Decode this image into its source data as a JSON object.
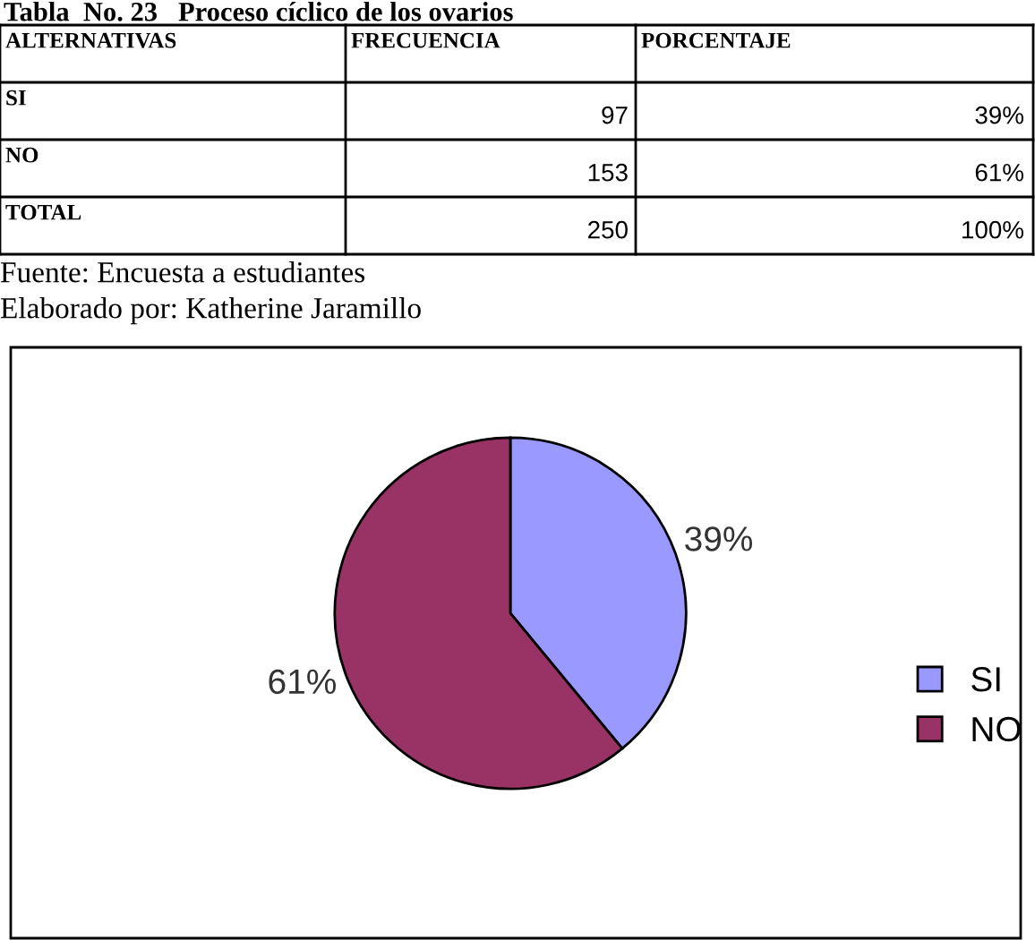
{
  "chart_data": {
    "type": "pie",
    "title": "Tabla  No. 23   Proceso cíclico de los ovarios",
    "categories": [
      "SI",
      "NO"
    ],
    "values": [
      39,
      61
    ],
    "value_labels": [
      "39%",
      "61%"
    ],
    "colors": [
      "#9999ff",
      "#993366"
    ],
    "legend": "right",
    "annotations": [
      "ALTERNATIVAS",
      "FRECUENCIA",
      "PORCENTAJE",
      "97",
      "153",
      "TOTAL",
      "250",
      "100%",
      "Fuente: Encuesta a estudiantes",
      "Elaborado por: Katherine Jaramillo"
    ]
  }
}
